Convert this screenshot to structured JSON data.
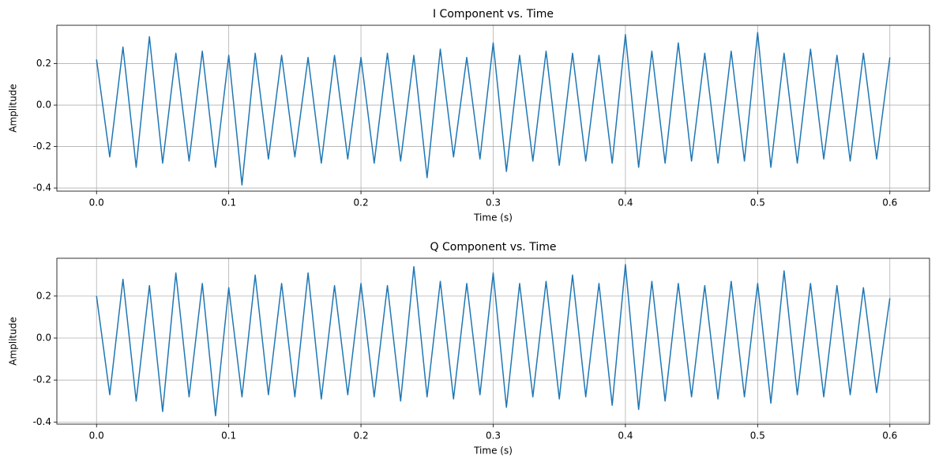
{
  "chart_data": [
    {
      "type": "line",
      "title": "I Component vs. Time",
      "xlabel": "Time (s)",
      "ylabel": "Amplitude",
      "x": [
        0,
        0.01,
        0.02,
        0.03,
        0.04,
        0.05,
        0.06,
        0.07,
        0.08,
        0.09,
        0.1,
        0.11,
        0.12,
        0.13,
        0.14,
        0.15,
        0.16,
        0.17,
        0.18,
        0.19,
        0.2,
        0.21,
        0.22,
        0.23,
        0.24,
        0.25,
        0.26,
        0.27,
        0.28,
        0.29,
        0.3,
        0.31,
        0.32,
        0.33,
        0.34,
        0.35,
        0.36,
        0.37,
        0.38,
        0.39,
        0.4,
        0.41,
        0.42,
        0.43,
        0.44,
        0.45,
        0.46,
        0.47,
        0.48,
        0.49,
        0.5,
        0.51,
        0.52,
        0.53,
        0.54,
        0.55,
        0.56,
        0.57,
        0.58,
        0.59,
        0.6
      ],
      "series": [
        {
          "color": "#1f77b4",
          "values": [
            0.22,
            -0.25,
            0.28,
            -0.3,
            0.33,
            -0.28,
            0.25,
            -0.27,
            0.26,
            -0.3,
            0.24,
            -0.385,
            0.25,
            -0.26,
            0.24,
            -0.25,
            0.23,
            -0.28,
            0.24,
            -0.26,
            0.23,
            -0.28,
            0.25,
            -0.27,
            0.24,
            -0.35,
            0.27,
            -0.25,
            0.23,
            -0.26,
            0.3,
            -0.32,
            0.24,
            -0.27,
            0.26,
            -0.29,
            0.25,
            -0.27,
            0.24,
            -0.28,
            0.34,
            -0.3,
            0.26,
            -0.28,
            0.3,
            -0.27,
            0.25,
            -0.28,
            0.26,
            -0.27,
            0.35,
            -0.3,
            0.25,
            -0.28,
            0.27,
            -0.26,
            0.24,
            -0.27,
            0.25,
            -0.26,
            0.23
          ]
        }
      ],
      "xlim": [
        -0.03,
        0.63
      ],
      "ylim": [
        -0.415,
        0.385
      ],
      "xticks": [
        {
          "value": 0,
          "label": "0.0"
        },
        0.1,
        0.2,
        0.3,
        0.4,
        0.5,
        0.6
      ],
      "yticks": [
        -0.4,
        -0.2,
        {
          "value": 0,
          "label": "0.0"
        },
        0.2
      ],
      "grid": true
    },
    {
      "type": "line",
      "title": "Q Component vs. Time",
      "xlabel": "Time (s)",
      "ylabel": "Amplitude",
      "x": [
        0,
        0.01,
        0.02,
        0.03,
        0.04,
        0.05,
        0.06,
        0.07,
        0.08,
        0.09,
        0.1,
        0.11,
        0.12,
        0.13,
        0.14,
        0.15,
        0.16,
        0.17,
        0.18,
        0.19,
        0.2,
        0.21,
        0.22,
        0.23,
        0.24,
        0.25,
        0.26,
        0.27,
        0.28,
        0.29,
        0.3,
        0.31,
        0.32,
        0.33,
        0.34,
        0.35,
        0.36,
        0.37,
        0.38,
        0.39,
        0.4,
        0.41,
        0.42,
        0.43,
        0.44,
        0.45,
        0.46,
        0.47,
        0.48,
        0.49,
        0.5,
        0.51,
        0.52,
        0.53,
        0.54,
        0.55,
        0.56,
        0.57,
        0.58,
        0.59,
        0.6
      ],
      "series": [
        {
          "color": "#1f77b4",
          "values": [
            0.2,
            -0.27,
            0.28,
            -0.3,
            0.25,
            -0.35,
            0.31,
            -0.28,
            0.26,
            -0.37,
            0.24,
            -0.28,
            0.3,
            -0.27,
            0.26,
            -0.28,
            0.31,
            -0.29,
            0.25,
            -0.27,
            0.26,
            -0.28,
            0.25,
            -0.3,
            0.34,
            -0.28,
            0.27,
            -0.29,
            0.26,
            -0.27,
            0.31,
            -0.33,
            0.26,
            -0.28,
            0.27,
            -0.29,
            0.3,
            -0.28,
            0.26,
            -0.32,
            0.35,
            -0.34,
            0.27,
            -0.3,
            0.26,
            -0.28,
            0.25,
            -0.29,
            0.27,
            -0.28,
            0.26,
            -0.31,
            0.32,
            -0.27,
            0.26,
            -0.28,
            0.25,
            -0.27,
            0.24,
            -0.26,
            0.19
          ]
        }
      ],
      "xlim": [
        -0.03,
        0.63
      ],
      "ylim": [
        -0.41,
        0.38
      ],
      "xticks": [
        {
          "value": 0,
          "label": "0.0"
        },
        0.1,
        0.2,
        0.3,
        0.4,
        0.5,
        0.6
      ],
      "yticks": [
        -0.4,
        -0.2,
        {
          "value": 0,
          "label": "0.0"
        },
        0.2
      ],
      "grid": true
    }
  ]
}
